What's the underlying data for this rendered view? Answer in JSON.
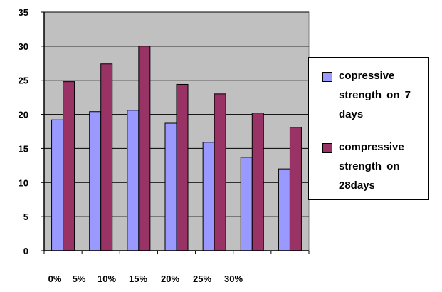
{
  "chart_data": {
    "type": "bar",
    "title": "",
    "xlabel": "",
    "ylabel": "",
    "categories": [
      "0%",
      "5%",
      "10%",
      "15%",
      "20%",
      "25%",
      "30%"
    ],
    "series": [
      {
        "name": "copressive strength on 7 days",
        "color": "#9999ff",
        "values": [
          19.2,
          20.4,
          20.6,
          18.7,
          15.9,
          13.7,
          12.0
        ]
      },
      {
        "name": "compressive strength on 28days",
        "color": "#993366",
        "values": [
          24.8,
          27.4,
          30.0,
          24.4,
          23.0,
          20.2,
          18.1
        ]
      }
    ],
    "ylim": [
      0,
      35
    ],
    "yticks": [
      0,
      5,
      10,
      15,
      20,
      25,
      30,
      35
    ],
    "grid": true,
    "plot_background": "#c0c0c0",
    "legend_position": "right"
  }
}
